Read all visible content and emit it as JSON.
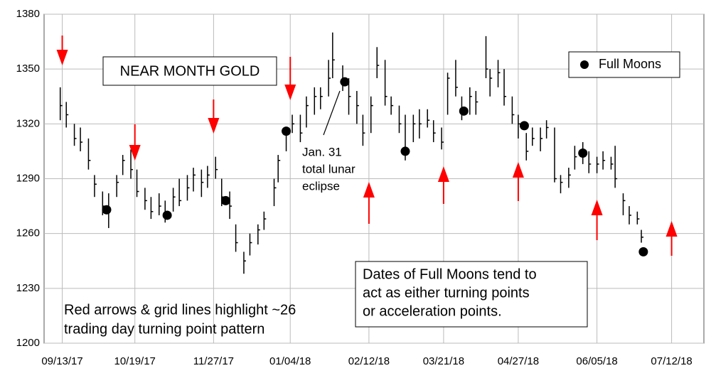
{
  "chart_data": {
    "type": "ohlc",
    "title": "NEAR MONTH GOLD",
    "color": "#000000",
    "x": [
      "2017-09-12",
      "2017-09-15",
      "2017-09-19",
      "2017-09-22",
      "2017-09-26",
      "2017-09-29",
      "2017-10-03",
      "2017-10-06",
      "2017-10-10",
      "2017-10-13",
      "2017-10-17",
      "2017-10-20",
      "2017-10-24",
      "2017-10-27",
      "2017-10-31",
      "2017-11-03",
      "2017-11-07",
      "2017-11-10",
      "2017-11-14",
      "2017-11-17",
      "2017-11-21",
      "2017-11-24",
      "2017-11-28",
      "2017-12-01",
      "2017-12-05",
      "2017-12-08",
      "2017-12-12",
      "2017-12-15",
      "2017-12-19",
      "2017-12-22",
      "2017-12-27",
      "2017-12-29",
      "2018-01-02",
      "2018-01-05",
      "2018-01-09",
      "2018-01-12",
      "2018-01-16",
      "2018-01-19",
      "2018-01-23",
      "2018-01-25",
      "2018-01-30",
      "2018-02-02",
      "2018-02-06",
      "2018-02-09",
      "2018-02-13",
      "2018-02-16",
      "2018-02-20",
      "2018-02-23",
      "2018-02-27",
      "2018-03-02",
      "2018-03-06",
      "2018-03-09",
      "2018-03-13",
      "2018-03-16",
      "2018-03-20",
      "2018-03-23",
      "2018-03-27",
      "2018-03-30",
      "2018-04-03",
      "2018-04-06",
      "2018-04-11",
      "2018-04-13",
      "2018-04-17",
      "2018-04-20",
      "2018-04-24",
      "2018-04-27",
      "2018-05-01",
      "2018-05-04",
      "2018-05-08",
      "2018-05-11",
      "2018-05-15",
      "2018-05-18",
      "2018-05-22",
      "2018-05-25",
      "2018-05-29",
      "2018-06-01",
      "2018-06-05",
      "2018-06-08",
      "2018-06-12",
      "2018-06-14",
      "2018-06-18",
      "2018-06-21",
      "2018-06-25",
      "2018-06-27"
    ],
    "high": [
      1340,
      1332,
      1320,
      1318,
      1312,
      1292,
      1283,
      1282,
      1292,
      1303,
      1306,
      1295,
      1285,
      1280,
      1282,
      1278,
      1285,
      1290,
      1292,
      1296,
      1295,
      1297,
      1302,
      1290,
      1283,
      1265,
      1250,
      1260,
      1265,
      1272,
      1290,
      1303,
      1318,
      1325,
      1325,
      1335,
      1340,
      1340,
      1355,
      1370,
      1352,
      1345,
      1338,
      1325,
      1335,
      1362,
      1355,
      1335,
      1330,
      1325,
      1325,
      1328,
      1328,
      1322,
      1318,
      1348,
      1355,
      1335,
      1340,
      1338,
      1368,
      1350,
      1355,
      1350,
      1335,
      1325,
      1315,
      1318,
      1318,
      1322,
      1318,
      1292,
      1296,
      1308,
      1310,
      1305,
      1302,
      1305,
      1302,
      1308,
      1282,
      1275,
      1272,
      1262
    ],
    "low": [
      1322,
      1318,
      1308,
      1305,
      1295,
      1280,
      1270,
      1263,
      1280,
      1292,
      1290,
      1280,
      1273,
      1268,
      1270,
      1266,
      1272,
      1275,
      1278,
      1283,
      1280,
      1285,
      1290,
      1275,
      1268,
      1250,
      1238,
      1248,
      1254,
      1262,
      1275,
      1288,
      1305,
      1315,
      1310,
      1318,
      1325,
      1328,
      1335,
      1345,
      1338,
      1325,
      1320,
      1308,
      1315,
      1345,
      1330,
      1325,
      1315,
      1300,
      1310,
      1312,
      1318,
      1310,
      1306,
      1325,
      1335,
      1322,
      1325,
      1325,
      1345,
      1335,
      1340,
      1330,
      1320,
      1312,
      1300,
      1308,
      1305,
      1312,
      1288,
      1282,
      1285,
      1295,
      1298,
      1293,
      1293,
      1295,
      1295,
      1285,
      1270,
      1265,
      1265,
      1255
    ],
    "close": [
      1330,
      1325,
      1312,
      1310,
      1300,
      1287,
      1275,
      1274,
      1288,
      1300,
      1295,
      1283,
      1278,
      1272,
      1275,
      1270,
      1280,
      1278,
      1285,
      1292,
      1288,
      1292,
      1295,
      1280,
      1275,
      1255,
      1245,
      1255,
      1262,
      1268,
      1285,
      1300,
      1316,
      1320,
      1315,
      1330,
      1335,
      1335,
      1345,
      1355,
      1343,
      1335,
      1330,
      1315,
      1330,
      1352,
      1335,
      1330,
      1320,
      1305,
      1320,
      1320,
      1322,
      1315,
      1310,
      1345,
      1340,
      1327,
      1335,
      1332,
      1350,
      1345,
      1348,
      1335,
      1325,
      1320,
      1305,
      1312,
      1312,
      1318,
      1290,
      1288,
      1292,
      1302,
      1304,
      1298,
      1298,
      1300,
      1298,
      1290,
      1278,
      1270,
      1268,
      1258
    ],
    "series": [
      {
        "name": "Full Moons",
        "color": "#000000",
        "x": [
          "2017-10-05",
          "2017-11-04",
          "2017-12-03",
          "2018-01-02",
          "2018-01-31",
          "2018-03-02",
          "2018-03-31",
          "2018-04-30",
          "2018-05-29",
          "2018-06-28"
        ],
        "values": [
          1273,
          1270,
          1278,
          1316,
          1343,
          1305,
          1327,
          1319,
          1304,
          1250
        ]
      }
    ],
    "eclipse_note": [
      "Jan. 31",
      "total lunar",
      "eclipse"
    ],
    "note": [
      "Dates of Full Moons tend to",
      "act as either turning points",
      "or acceleration points."
    ],
    "highlight_note": [
      "Red arrows & grid lines highlight ~26",
      "trading day turning point pattern"
    ],
    "arrow_color": "#ff0000",
    "xlim": [
      "2017-09-04",
      "2018-07-28"
    ],
    "xticks": [
      {
        "value": "2017-09-13",
        "label": "09/13/17"
      },
      {
        "value": "2017-10-19",
        "label": "10/19/17"
      },
      {
        "value": "2017-11-27",
        "label": "11/27/17"
      },
      {
        "value": "2018-01-04",
        "label": "01/04/18"
      },
      {
        "value": "2018-02-12",
        "label": "02/12/18"
      },
      {
        "value": "2018-03-21",
        "label": "03/21/18"
      },
      {
        "value": "2018-04-27",
        "label": "04/27/18"
      },
      {
        "value": "2018-06-05",
        "label": "06/05/18"
      },
      {
        "value": "2018-07-12",
        "label": "07/12/18"
      }
    ],
    "ylim": [
      1200,
      1380
    ],
    "yticks": [
      1200,
      1230,
      1260,
      1290,
      1320,
      1350,
      1380
    ],
    "grid": true
  }
}
